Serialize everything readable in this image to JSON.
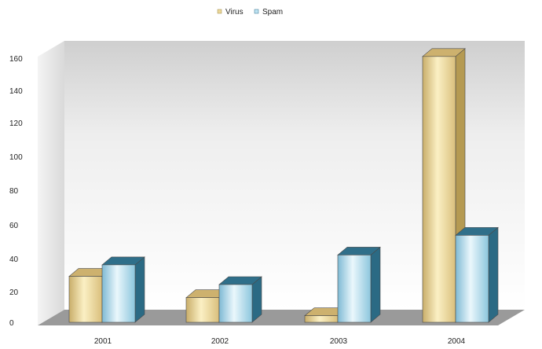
{
  "chart_data": {
    "type": "bar",
    "categories": [
      "2001",
      "2002",
      "2003",
      "2004"
    ],
    "series": [
      {
        "name": "Virus",
        "values": [
          28,
          15,
          4,
          162
        ]
      },
      {
        "name": "Spam",
        "values": [
          35,
          23,
          41,
          53
        ]
      }
    ],
    "ylim": [
      0,
      160
    ],
    "yticks": [
      "0",
      "20",
      "40",
      "60",
      "80",
      "100",
      "120",
      "140",
      "160"
    ],
    "legend_position": "top-center",
    "grid": false,
    "style": "3d",
    "colors": {
      "virus_front": "#ecd89a",
      "virus_top": "#cdb16e",
      "virus_side": "#b59a52",
      "spam_front": "#bfe3f2",
      "spam_top": "#2f6f8a",
      "spam_side": "#2b6a84",
      "floor": "#9a9a9a",
      "wall": "#e8e8e8"
    }
  }
}
